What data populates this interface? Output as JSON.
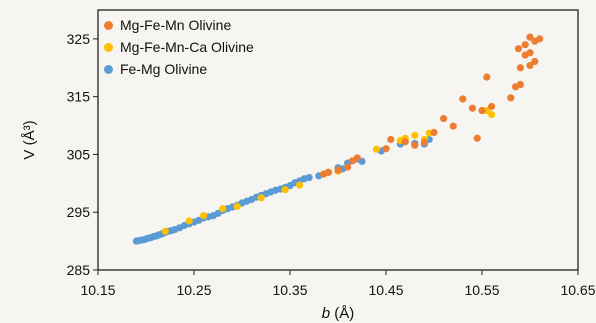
{
  "chart_data": {
    "type": "scatter",
    "xlabel_italic": "b",
    "xlabel_rest": " (Å)",
    "ylabel": "V (Å³)",
    "xlim": [
      10.15,
      10.65
    ],
    "ylim": [
      285,
      330
    ],
    "xticks": [
      10.15,
      10.25,
      10.35,
      10.45,
      10.55,
      10.65
    ],
    "xtick_labels": [
      "10.15",
      "10.25",
      "10.35",
      "10.45",
      "10.55",
      "10.65"
    ],
    "yticks": [
      285,
      295,
      305,
      315,
      325
    ],
    "ytick_labels": [
      "285",
      "295",
      "305",
      "315",
      "325"
    ],
    "grid": false,
    "legend_position": "top-left",
    "series": [
      {
        "name": "Mg-Fe-Mn Olivine",
        "color": "#ed7d31",
        "points": [
          [
            10.385,
            301.6
          ],
          [
            10.39,
            301.9
          ],
          [
            10.4,
            302.3
          ],
          [
            10.41,
            302.8
          ],
          [
            10.415,
            303.9
          ],
          [
            10.42,
            304.4
          ],
          [
            10.45,
            306.0
          ],
          [
            10.455,
            307.6
          ],
          [
            10.47,
            307.2
          ],
          [
            10.48,
            306.6
          ],
          [
            10.49,
            307.1
          ],
          [
            10.5,
            308.8
          ],
          [
            10.51,
            311.2
          ],
          [
            10.52,
            309.9
          ],
          [
            10.53,
            314.6
          ],
          [
            10.54,
            313.0
          ],
          [
            10.545,
            307.8
          ],
          [
            10.55,
            312.6
          ],
          [
            10.555,
            318.4
          ],
          [
            10.56,
            313.3
          ],
          [
            10.58,
            314.8
          ],
          [
            10.585,
            316.7
          ],
          [
            10.59,
            317.1
          ],
          [
            10.59,
            320.0
          ],
          [
            10.595,
            322.2
          ],
          [
            10.595,
            324.0
          ],
          [
            10.6,
            325.3
          ],
          [
            10.6,
            322.6
          ],
          [
            10.6,
            320.4
          ],
          [
            10.605,
            324.6
          ],
          [
            10.605,
            321.1
          ],
          [
            10.61,
            325.0
          ],
          [
            10.588,
            323.3
          ]
        ]
      },
      {
        "name": "Mg-Fe-Mn-Ca Olivine",
        "color": "#ffc000",
        "points": [
          [
            10.22,
            291.7
          ],
          [
            10.245,
            293.5
          ],
          [
            10.26,
            294.4
          ],
          [
            10.28,
            295.6
          ],
          [
            10.295,
            296.0
          ],
          [
            10.32,
            297.5
          ],
          [
            10.345,
            298.9
          ],
          [
            10.36,
            299.7
          ],
          [
            10.39,
            301.9
          ],
          [
            10.4,
            302.1
          ],
          [
            10.44,
            305.9
          ],
          [
            10.465,
            307.4
          ],
          [
            10.47,
            307.8
          ],
          [
            10.48,
            308.3
          ],
          [
            10.49,
            307.6
          ],
          [
            10.495,
            308.7
          ],
          [
            10.555,
            312.6
          ],
          [
            10.56,
            311.9
          ]
        ]
      },
      {
        "name": "Fe-Mg Olivine",
        "color": "#5b9bd5",
        "points": [
          [
            10.19,
            290.0
          ],
          [
            10.193,
            290.1
          ],
          [
            10.196,
            290.2
          ],
          [
            10.199,
            290.3
          ],
          [
            10.202,
            290.5
          ],
          [
            10.205,
            290.6
          ],
          [
            10.208,
            290.8
          ],
          [
            10.211,
            290.9
          ],
          [
            10.214,
            291.1
          ],
          [
            10.217,
            291.3
          ],
          [
            10.22,
            291.5
          ],
          [
            10.223,
            291.7
          ],
          [
            10.226,
            291.8
          ],
          [
            10.23,
            292.0
          ],
          [
            10.235,
            292.3
          ],
          [
            10.24,
            292.7
          ],
          [
            10.245,
            293.0
          ],
          [
            10.25,
            293.3
          ],
          [
            10.255,
            293.6
          ],
          [
            10.26,
            294.0
          ],
          [
            10.265,
            294.2
          ],
          [
            10.27,
            294.4
          ],
          [
            10.275,
            294.8
          ],
          [
            10.28,
            295.3
          ],
          [
            10.285,
            295.6
          ],
          [
            10.29,
            295.9
          ],
          [
            10.295,
            296.2
          ],
          [
            10.3,
            296.6
          ],
          [
            10.305,
            296.9
          ],
          [
            10.31,
            297.2
          ],
          [
            10.315,
            297.6
          ],
          [
            10.32,
            297.9
          ],
          [
            10.325,
            298.2
          ],
          [
            10.33,
            298.5
          ],
          [
            10.335,
            298.8
          ],
          [
            10.34,
            299.0
          ],
          [
            10.345,
            299.3
          ],
          [
            10.35,
            299.6
          ],
          [
            10.355,
            300.1
          ],
          [
            10.36,
            300.4
          ],
          [
            10.365,
            300.8
          ],
          [
            10.37,
            301.0
          ],
          [
            10.38,
            301.3
          ],
          [
            10.39,
            301.9
          ],
          [
            10.4,
            302.7
          ],
          [
            10.405,
            302.5
          ],
          [
            10.41,
            303.5
          ],
          [
            10.42,
            304.2
          ],
          [
            10.425,
            303.8
          ],
          [
            10.445,
            305.6
          ],
          [
            10.465,
            306.8
          ],
          [
            10.47,
            307.2
          ],
          [
            10.48,
            306.9
          ],
          [
            10.49,
            306.8
          ],
          [
            10.495,
            307.6
          ]
        ]
      }
    ]
  }
}
